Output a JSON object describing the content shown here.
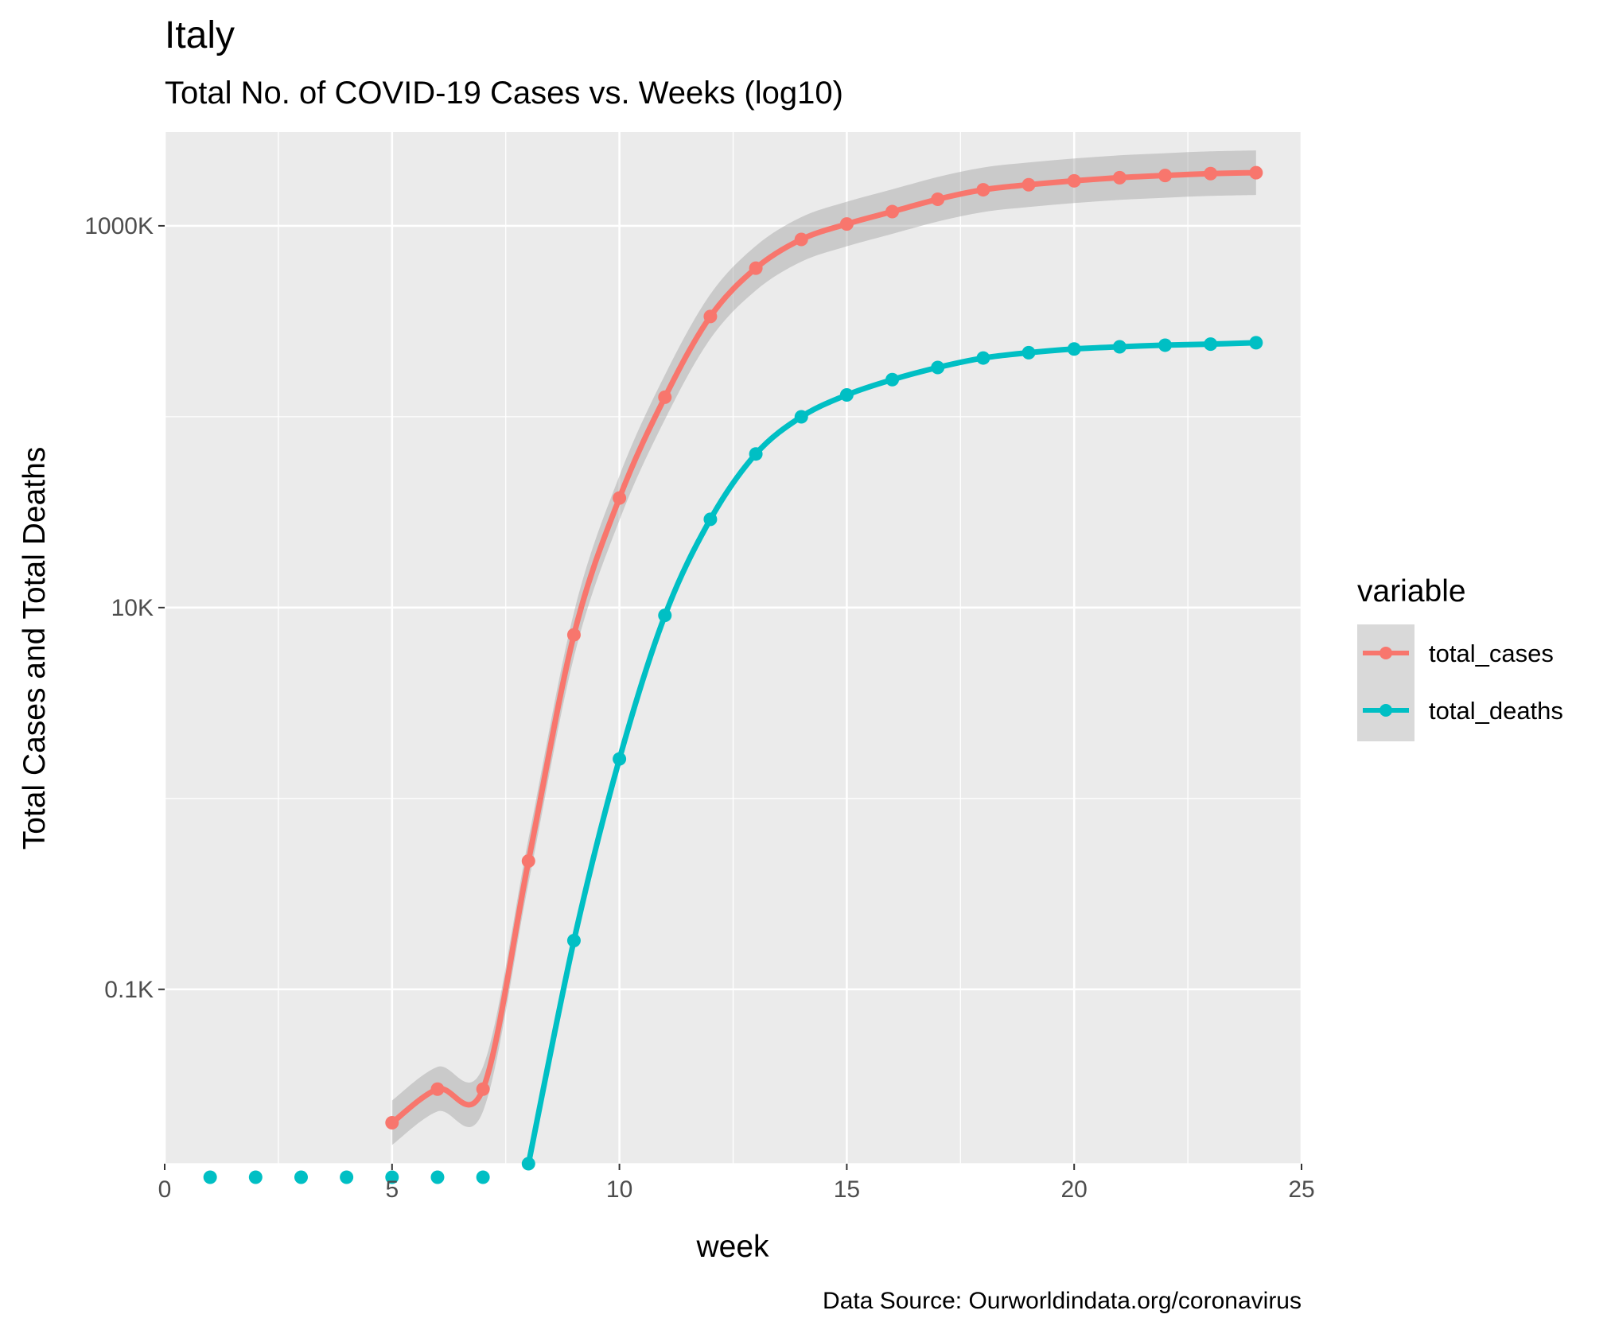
{
  "chart_data": {
    "type": "line",
    "title": "Italy",
    "subtitle": "Total No. of COVID-19 Cases vs. Weeks (log10)",
    "xlabel": "week",
    "ylabel": "Total Cases and Total Deaths",
    "caption": "Data Source: Ourworldindata.org/coronavirus",
    "xlim": [
      0,
      25
    ],
    "x_ticks": [
      0,
      5,
      10,
      15,
      20,
      25
    ],
    "x_tick_labels": [
      "0",
      "5",
      "10",
      "15",
      "20",
      "25"
    ],
    "y_scale": "log10",
    "y_unit": "thousands",
    "ylim": [
      0.0122,
      3100
    ],
    "y_ticks": [
      0.1,
      10,
      1000
    ],
    "y_tick_labels": [
      "0.1K",
      "10K",
      "1000K"
    ],
    "y_minor_ticks": [
      0.01,
      1,
      100
    ],
    "grid": true,
    "legend": {
      "title": "variable",
      "position": "right"
    },
    "series": [
      {
        "name": "total_cases",
        "color": "#F8766D",
        "x": [
          5,
          6,
          7,
          8,
          9,
          10,
          11,
          12,
          13,
          14,
          15,
          16,
          17,
          18,
          19,
          20,
          21,
          22,
          23,
          24
        ],
        "y": [
          0.02,
          0.03,
          0.03,
          0.47,
          7.2,
          37.5,
          126.5,
          335,
          600,
          849,
          1022,
          1187,
          1378,
          1545,
          1642,
          1721,
          1788,
          1836,
          1877,
          1898
        ],
        "smooth": true,
        "confidence_band": true
      },
      {
        "name": "total_deaths",
        "color": "#00BFC4",
        "x": [
          1,
          2,
          3,
          4,
          5,
          6,
          7,
          8,
          9,
          10,
          11,
          12,
          13,
          14,
          15,
          16,
          17,
          18,
          19,
          20,
          21,
          22,
          23,
          24
        ],
        "y": [
          0,
          0,
          0,
          0,
          0,
          0,
          0,
          0.01,
          0.18,
          1.61,
          9.1,
          29.0,
          63.8,
          99.9,
          130.0,
          156.4,
          181.0,
          203.0,
          216.5,
          226.4,
          232.4,
          237.0,
          240.0,
          244.0
        ],
        "smooth": true,
        "confidence_band": false
      }
    ]
  }
}
